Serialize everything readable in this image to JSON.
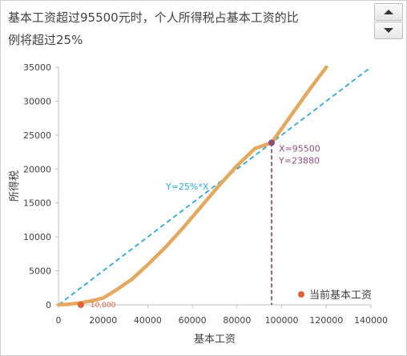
{
  "title_lines": [
    "基本工资超过95500元时，个人所得税占基本工资的比",
    "例将超过25%"
  ],
  "controls": {
    "spin_up": "spin-up-icon",
    "spin_down": "spin-down-icon"
  },
  "colors": {
    "tax_curve": "#e4a85e",
    "reference_line": "#2aa9e0",
    "intersection": "#8e4f7e",
    "current_point": "#e0603a",
    "axis": "#bfbfbf",
    "text": "#404040"
  },
  "chart_data": {
    "type": "line",
    "xlabel": "基本工资",
    "ylabel": "所得税",
    "xlim": [
      0,
      140000
    ],
    "ylim": [
      0,
      35000
    ],
    "x_ticks": [
      0,
      20000,
      40000,
      60000,
      80000,
      100000,
      120000,
      140000
    ],
    "y_ticks": [
      0,
      5000,
      10000,
      15000,
      20000,
      25000,
      30000,
      35000
    ],
    "grid": false,
    "legend": "bottom-right",
    "series": [
      {
        "x": [
          0,
          5000,
          10000,
          15000,
          20000,
          26000,
          33000,
          40000,
          48000,
          56000,
          64000,
          72000,
          80000,
          88000,
          95500,
          104000,
          112000,
          120000
        ],
        "y": [
          0,
          100,
          300,
          600,
          1000,
          2200,
          3800,
          5900,
          8500,
          11400,
          14500,
          17600,
          20500,
          23000,
          23880,
          27800,
          31500,
          35000
        ]
      },
      {
        "name": "Y=25%*X",
        "x": [
          0,
          140000
        ],
        "y": [
          0,
          35000
        ]
      },
      {
        "name": "当前基本工资",
        "x": [
          10000
        ],
        "y": [
          0
        ]
      }
    ],
    "annotations": {
      "reference_label": "Y=25%*X",
      "intersection_x_label": "X=95500",
      "intersection_y_label": "Y=23880",
      "intersection": {
        "x": 95500,
        "y": 23880
      },
      "current_label": "10,000",
      "current": {
        "x": 10000,
        "y": 0
      }
    }
  }
}
